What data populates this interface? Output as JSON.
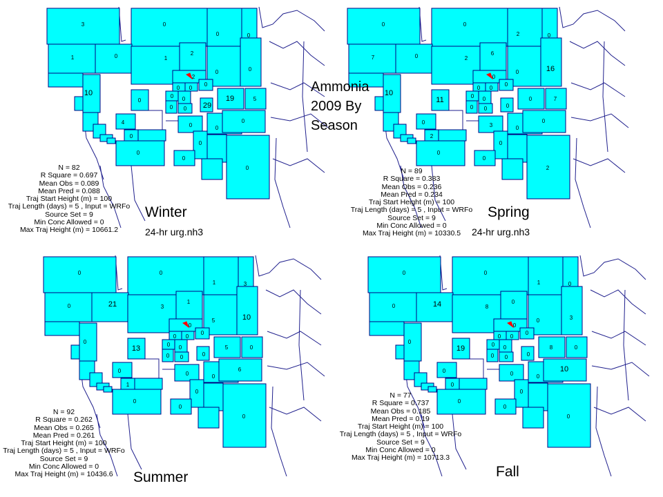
{
  "title_lines": [
    "Ammonia",
    "2009 By",
    "Season"
  ],
  "colors": {
    "region_fill": "#00ffff",
    "region_border": "#000080",
    "map_lines": "#1e1e8c",
    "source_marker": "#ff0000"
  },
  "panels": [
    {
      "season": "Winter",
      "file": "24-hr urg.nh3",
      "stats": [
        "N = 82",
        "R Square = 0.697",
        "Mean Obs  = 0.089",
        "Mean Pred = 0.088",
        "Traj Start Height (m) = 100",
        "Traj Length (days) = 5 , Input = WRFo",
        "Source Set = 9",
        "Min Conc Allowed = 0",
        "Max Traj Height (m) = 10661.2"
      ],
      "cells": [
        "3",
        "0",
        "0",
        "0",
        "1",
        "0",
        "1",
        "2",
        "0",
        "0",
        "10",
        "2",
        "0",
        "0",
        "0",
        "0",
        "0",
        "0",
        "19",
        "5",
        "0",
        "0",
        "29",
        "0",
        "4",
        "0",
        "0",
        "0",
        "0",
        "0",
        "0",
        "0"
      ]
    },
    {
      "season": "Spring",
      "file": "24-hr urg.nh3",
      "stats": [
        "N = 89",
        "R Square = 0.383",
        "Mean Obs  = 0.236",
        "Mean Pred = 0.234",
        "Traj Start Height (m) = 100",
        "Traj Length (days) = 5 , Input = WRFo",
        "Source Set = 9",
        "Min Conc Allowed = 0",
        "Max Traj Height (m) = 10330.5"
      ],
      "cells": [
        "0",
        "0",
        "2",
        "0",
        "7",
        "0",
        "2",
        "6",
        "0",
        "16",
        "10",
        "0",
        "0",
        "0",
        "0",
        "11",
        "0",
        "0",
        "0",
        "7",
        "0",
        "0",
        "0",
        "0",
        "0",
        "2",
        "0",
        "3",
        "0",
        "0",
        "0",
        "2"
      ]
    },
    {
      "season": "Summer",
      "file": "",
      "stats": [
        "N = 92",
        "R Square = 0.262",
        "Mean Obs  = 0.265",
        "Mean Pred = 0.261",
        "Traj Start Height (m) = 100",
        "Traj Length (days) = 5 , Input = WRFo",
        "Source Set = 9",
        "Min Conc Allowed = 0",
        "Max Traj Height (m) = 10436.6"
      ],
      "cells": [
        "0",
        "0",
        "1",
        "3",
        "0",
        "21",
        "3",
        "1",
        "5",
        "10",
        "0",
        "0",
        "0",
        "0",
        "0",
        "13",
        "0",
        "0",
        "5",
        "0",
        "0",
        "0",
        "0",
        "0",
        "0",
        "1",
        "0",
        "0",
        "6",
        "0",
        "0",
        "0"
      ]
    },
    {
      "season": "Fall",
      "file": "",
      "stats": [
        "N = 77",
        "R Square = 0.737",
        "Mean Obs  = 0.185",
        "Mean Pred = 0.19",
        "Traj Start Height (m) = 100",
        "Traj Length (days) = 5 , Input = WRFo",
        "Source Set = 9",
        "Min Conc Allowed = 0",
        "Max Traj Height (m) = 10713.3"
      ],
      "cells": [
        "0",
        "0",
        "1",
        "0",
        "0",
        "14",
        "8",
        "0",
        "0",
        "3",
        "0",
        "0",
        "0",
        "0",
        "0",
        "19",
        "0",
        "0",
        "8",
        "0",
        "0",
        "0",
        "0",
        "0",
        "0",
        "0",
        "0",
        "0",
        "10",
        "0",
        "0",
        "0"
      ]
    }
  ]
}
